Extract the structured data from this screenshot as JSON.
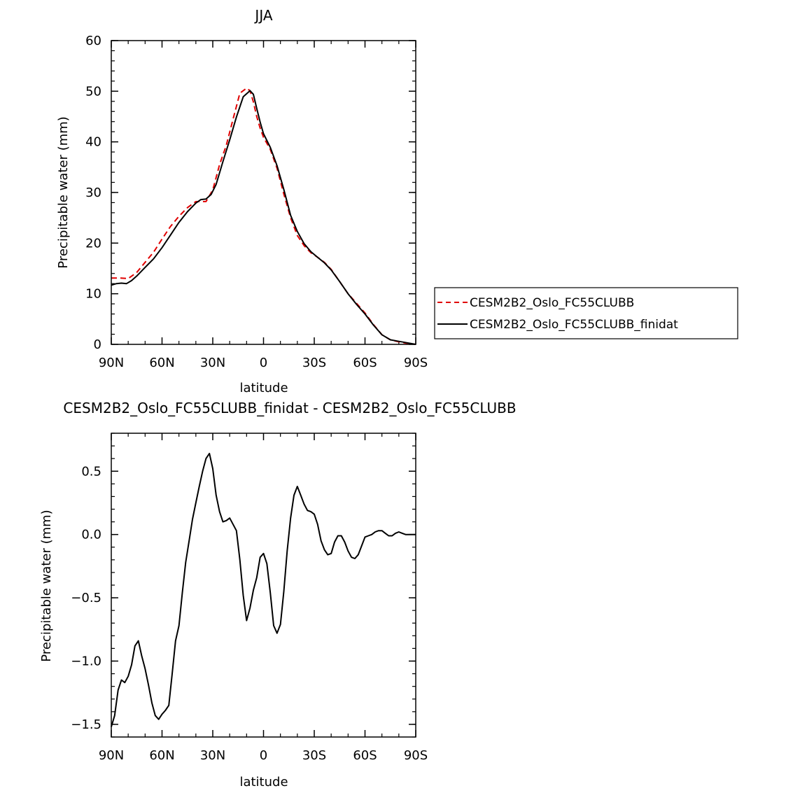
{
  "chart_data": [
    {
      "type": "line",
      "title": "JJA",
      "xlabel": "latitude",
      "ylabel": "Precipitable water (mm)",
      "xlim": [
        90,
        -90
      ],
      "ylim": [
        0,
        60
      ],
      "x_ticks": [
        {
          "v": 90,
          "label": "90N"
        },
        {
          "v": 60,
          "label": "60N"
        },
        {
          "v": 30,
          "label": "30N"
        },
        {
          "v": 0,
          "label": "0"
        },
        {
          "v": -30,
          "label": "30S"
        },
        {
          "v": -60,
          "label": "60S"
        },
        {
          "v": -90,
          "label": "90S"
        }
      ],
      "y_ticks": [
        {
          "v": 0,
          "label": "0"
        },
        {
          "v": 10,
          "label": "10"
        },
        {
          "v": 20,
          "label": "20"
        },
        {
          "v": 30,
          "label": "30"
        },
        {
          "v": 40,
          "label": "40"
        },
        {
          "v": 50,
          "label": "50"
        },
        {
          "v": 60,
          "label": "60"
        }
      ],
      "legend": {
        "position": "right"
      },
      "series": [
        {
          "name": "CESM2B2_Oslo_FC55CLUBB",
          "color": "#e00000",
          "style": "dashed",
          "x": [
            90,
            85,
            80,
            75,
            70,
            65,
            60,
            55,
            50,
            45,
            40,
            37,
            34,
            30,
            26,
            22,
            18,
            14,
            10,
            8,
            6,
            4,
            2,
            0,
            -4,
            -8,
            -12,
            -16,
            -20,
            -24,
            -28,
            -32,
            -36,
            -40,
            -45,
            -50,
            -55,
            -60,
            -65,
            -70,
            -75,
            -80,
            -85,
            -90
          ],
          "y": [
            13.1,
            13.1,
            13.0,
            14.2,
            16.2,
            18.2,
            20.8,
            23.3,
            25.3,
            27.0,
            28.2,
            28.2,
            28.2,
            30.5,
            35.5,
            39.3,
            44.5,
            49.6,
            50.6,
            50.1,
            47.9,
            45.0,
            42.7,
            40.9,
            38.5,
            34.8,
            29.7,
            25.0,
            21.5,
            19.5,
            18.1,
            17.2,
            16.2,
            14.8,
            12.4,
            10.0,
            8.1,
            6.2,
            3.9,
            1.9,
            0.9,
            0.5,
            0.2,
            0.0
          ]
        },
        {
          "name": "CESM2B2_Oslo_FC55CLUBB_finidat",
          "color": "#000000",
          "style": "solid",
          "x": [
            90,
            87,
            84,
            81,
            78,
            75,
            70,
            65,
            60,
            55,
            50,
            45,
            40,
            37,
            34,
            31,
            28,
            24,
            20,
            16,
            12,
            9,
            8,
            6,
            4,
            2,
            0,
            -4,
            -8,
            -12,
            -16,
            -20,
            -24,
            -28,
            -32,
            -36,
            -40,
            -45,
            -50,
            -55,
            -60,
            -65,
            -70,
            -75,
            -80,
            -85,
            -90
          ],
          "y": [
            11.7,
            12.0,
            12.1,
            12.0,
            12.6,
            13.5,
            15.2,
            16.9,
            19.1,
            21.6,
            24.1,
            26.2,
            27.9,
            28.6,
            28.7,
            29.6,
            31.6,
            36.1,
            40.4,
            44.9,
            48.9,
            49.8,
            50.1,
            49.4,
            46.6,
            43.9,
            41.6,
            38.9,
            35.3,
            30.6,
            25.5,
            22.3,
            19.9,
            18.3,
            17.2,
            16.1,
            14.7,
            12.4,
            10.0,
            7.9,
            6.0,
            3.8,
            1.9,
            0.9,
            0.6,
            0.3,
            0.0
          ]
        }
      ]
    },
    {
      "type": "line",
      "title": "CESM2B2_Oslo_FC55CLUBB_finidat - CESM2B2_Oslo_FC55CLUBB",
      "xlabel": "latitude",
      "ylabel": "Precipitable water (mm)",
      "xlim": [
        90,
        -90
      ],
      "ylim": [
        -1.6,
        0.8
      ],
      "x_ticks": [
        {
          "v": 90,
          "label": "90N"
        },
        {
          "v": 60,
          "label": "60N"
        },
        {
          "v": 30,
          "label": "30N"
        },
        {
          "v": 0,
          "label": "0"
        },
        {
          "v": -30,
          "label": "30S"
        },
        {
          "v": -60,
          "label": "60S"
        },
        {
          "v": -90,
          "label": "90S"
        }
      ],
      "y_ticks": [
        {
          "v": -1.5,
          "label": "−1.5"
        },
        {
          "v": -1.0,
          "label": "−1.0"
        },
        {
          "v": -0.5,
          "label": "−0.5"
        },
        {
          "v": 0.0,
          "label": "0.0"
        },
        {
          "v": 0.5,
          "label": "0.5"
        }
      ],
      "series": [
        {
          "color": "#000000",
          "style": "solid",
          "x": [
            90,
            88,
            86,
            84,
            82,
            80,
            78,
            76,
            74,
            72,
            70,
            68,
            66,
            64,
            62,
            60,
            58,
            56,
            54,
            52,
            50,
            48,
            46,
            44,
            42,
            40,
            38,
            36,
            34,
            32,
            30,
            28,
            26,
            24,
            22,
            20,
            18,
            16,
            14,
            12,
            10,
            8,
            6,
            4,
            2,
            0,
            -2,
            -4,
            -6,
            -8,
            -10,
            -12,
            -14,
            -16,
            -18,
            -20,
            -22,
            -24,
            -26,
            -28,
            -30,
            -32,
            -34,
            -36,
            -38,
            -40,
            -42,
            -44,
            -46,
            -48,
            -50,
            -52,
            -54,
            -56,
            -58,
            -60,
            -62,
            -64,
            -66,
            -68,
            -70,
            -72,
            -74,
            -76,
            -78,
            -80,
            -82,
            -84,
            -86,
            -88,
            -90
          ],
          "y": [
            -1.52,
            -1.43,
            -1.23,
            -1.15,
            -1.17,
            -1.12,
            -1.03,
            -0.88,
            -0.84,
            -0.96,
            -1.06,
            -1.19,
            -1.33,
            -1.43,
            -1.46,
            -1.42,
            -1.39,
            -1.35,
            -1.1,
            -0.84,
            -0.72,
            -0.46,
            -0.22,
            -0.05,
            0.12,
            0.25,
            0.38,
            0.5,
            0.6,
            0.64,
            0.52,
            0.31,
            0.18,
            0.1,
            0.11,
            0.13,
            0.08,
            0.03,
            -0.2,
            -0.48,
            -0.68,
            -0.58,
            -0.44,
            -0.34,
            -0.18,
            -0.15,
            -0.23,
            -0.46,
            -0.72,
            -0.78,
            -0.71,
            -0.45,
            -0.13,
            0.13,
            0.31,
            0.38,
            0.31,
            0.24,
            0.19,
            0.18,
            0.16,
            0.08,
            -0.05,
            -0.12,
            -0.16,
            -0.15,
            -0.06,
            -0.01,
            -0.01,
            -0.06,
            -0.13,
            -0.18,
            -0.19,
            -0.16,
            -0.09,
            -0.02,
            -0.01,
            0.0,
            0.02,
            0.03,
            0.03,
            0.01,
            -0.01,
            -0.01,
            0.01,
            0.02,
            0.01,
            0.0,
            0.0,
            0.0,
            0.0
          ]
        }
      ]
    }
  ]
}
